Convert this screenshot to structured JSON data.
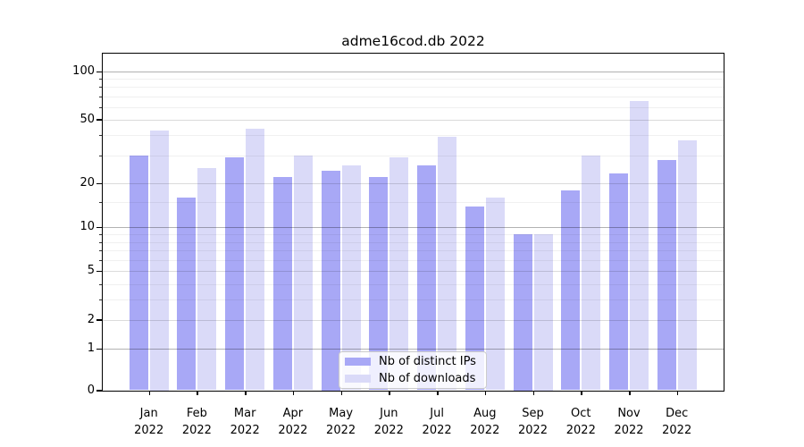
{
  "chart_data": {
    "type": "bar",
    "title": "adme16cod.db 2022",
    "categories": [
      "Jan",
      "Feb",
      "Mar",
      "Apr",
      "May",
      "Jun",
      "Jul",
      "Aug",
      "Sep",
      "Oct",
      "Nov",
      "Dec"
    ],
    "year_label": "2022",
    "series": [
      {
        "name": "Nb of distinct IPs",
        "color": "#a8a8f6",
        "values": [
          30,
          16,
          29,
          22,
          24,
          22,
          26,
          14,
          9,
          18,
          23,
          28
        ]
      },
      {
        "name": "Nb of downloads",
        "color": "#dadaf8",
        "values": [
          43,
          25,
          44,
          30,
          26,
          29,
          39,
          16,
          9,
          30,
          65,
          37
        ]
      }
    ],
    "ylabel": "",
    "xlabel": "",
    "yscale": "log-like",
    "ylim": [
      0,
      130
    ],
    "yticks": [
      0,
      1,
      2,
      5,
      10,
      20,
      50,
      100
    ],
    "ytick_labels": [
      "0",
      "1",
      "2",
      "5",
      "10",
      "20",
      "50",
      "100"
    ],
    "minor_gridlines": [
      3,
      4,
      6,
      7,
      8,
      9,
      15,
      30,
      40,
      60,
      70,
      80,
      90
    ],
    "grid": true,
    "legend_position": "lower center"
  },
  "colors": {
    "background": "#ffffff",
    "spine": "#000000",
    "text": "#000000",
    "legend_border": "#cccccc"
  }
}
